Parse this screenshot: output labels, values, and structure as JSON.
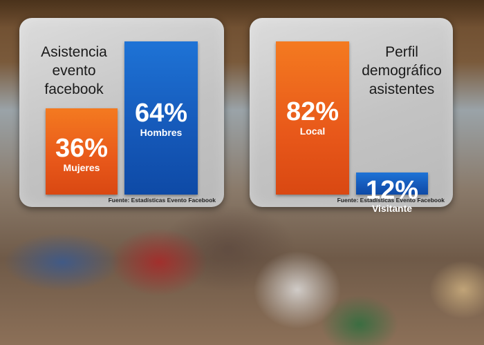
{
  "chart_data": [
    {
      "type": "bar",
      "title": "Asistencia evento facebook",
      "title_lines": [
        "Asistencia",
        "evento",
        "facebook"
      ],
      "categories": [
        "Mujeres",
        "Hombres"
      ],
      "values": [
        36,
        64
      ],
      "value_labels": [
        "36%",
        "64%"
      ],
      "colors": [
        "#ee6418",
        "#1560c4"
      ],
      "ylim": [
        0,
        64
      ],
      "source": "Fuente: Estadísticas Evento Facebook"
    },
    {
      "type": "bar",
      "title": "Perfil demográfico asistentes",
      "title_lines": [
        "Perfil",
        "demográfico",
        "asistentes"
      ],
      "categories": [
        "Local",
        "Visitante"
      ],
      "values": [
        82,
        12
      ],
      "value_labels": [
        "82%",
        "12%"
      ],
      "colors": [
        "#ee6418",
        "#1560c4"
      ],
      "ylim": [
        0,
        82
      ],
      "source": "Fuente: Estadísticas Evento Facebook"
    }
  ]
}
